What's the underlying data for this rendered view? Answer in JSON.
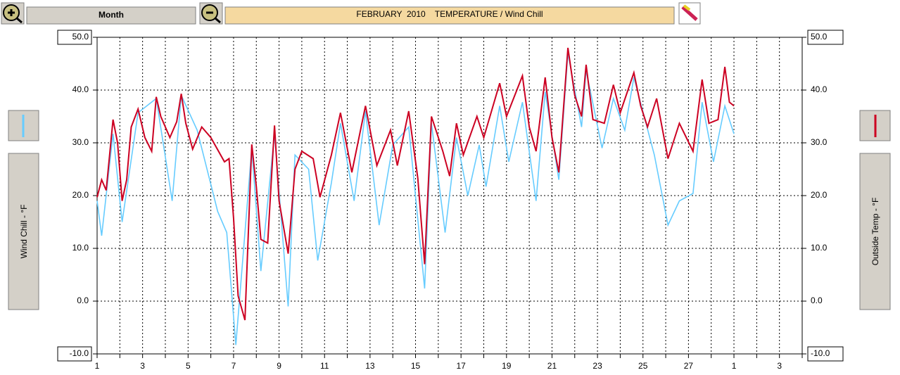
{
  "toolbar": {
    "range_button": "Month"
  },
  "chart_data": {
    "type": "line",
    "title": "FEBRUARY  2010    TEMPERATURE / Wind Chill",
    "ylabel": "Wind Chill - °F",
    "y2label": "Outside Temp - °F",
    "xlim": [
      1,
      32
    ],
    "xticks": [
      1,
      3,
      5,
      7,
      9,
      11,
      13,
      15,
      17,
      19,
      21,
      23,
      25,
      27,
      {
        "value": 29,
        "label": "1"
      },
      {
        "value": 31,
        "label": "3"
      }
    ],
    "x_minor_ticks": [
      2,
      4,
      6,
      8,
      10,
      12,
      14,
      16,
      18,
      20,
      22,
      24,
      26,
      28,
      30,
      32
    ],
    "ylim": [
      -10,
      50
    ],
    "yticks": [
      {
        "value": -10,
        "label": "-10.0"
      },
      {
        "value": 0,
        "label": "0.0"
      },
      {
        "value": 10,
        "label": "10.0"
      },
      {
        "value": 20,
        "label": "20.0"
      },
      {
        "value": 30,
        "label": "30.0"
      },
      {
        "value": 40,
        "label": "40.0"
      },
      {
        "value": 50,
        "label": "50.0"
      }
    ],
    "y2lim": [
      -10,
      50
    ],
    "y2ticks": [
      {
        "value": -10,
        "label": "-10.0"
      },
      {
        "value": 0,
        "label": "0.0"
      },
      {
        "value": 10,
        "label": "10.0"
      },
      {
        "value": 20,
        "label": "20.0"
      },
      {
        "value": 30,
        "label": "30.0"
      },
      {
        "value": 40,
        "label": "40.0"
      },
      {
        "value": 50,
        "label": "50.0"
      }
    ],
    "grid": true,
    "series": [
      {
        "name": "Wind Chill",
        "color": "#66ccff",
        "axis": "y",
        "x": [
          1,
          1.2,
          1.7,
          2.1,
          2.8,
          3.6,
          4.3,
          4.7,
          5.4,
          6.3,
          6.7,
          7.1,
          7.8,
          8.2,
          8.8,
          9.4,
          9.7,
          10.3,
          10.7,
          11.3,
          11.7,
          12.3,
          12.8,
          13.4,
          14.0,
          14.7,
          15.4,
          15.7,
          16.3,
          16.8,
          17.3,
          17.8,
          18.1,
          18.7,
          19.1,
          19.7,
          20.3,
          20.7,
          21.3,
          21.7,
          22.3,
          22.5,
          23.2,
          23.7,
          24.2,
          24.6,
          25.5,
          26.1,
          26.6,
          27.2,
          27.6,
          28.1,
          28.6,
          29
        ],
        "values": [
          19,
          12.4,
          31.7,
          15,
          35.7,
          38.4,
          19,
          39,
          32.4,
          17,
          13,
          -8.3,
          29,
          5.7,
          31.7,
          -1,
          27.7,
          25,
          7.7,
          22.4,
          33.7,
          19,
          36,
          14.4,
          29.6,
          33,
          2.4,
          33.7,
          13,
          31,
          20,
          29.6,
          21.7,
          37,
          26.4,
          37.7,
          19,
          39.7,
          23,
          47,
          33,
          43.7,
          29,
          38.4,
          32.4,
          42.4,
          27.7,
          14.4,
          19,
          20.4,
          37.7,
          26.4,
          37,
          31.7
        ]
      },
      {
        "name": "Outside Temp",
        "color": "#cc0022",
        "axis": "y2",
        "x": [
          1,
          1.2,
          1.4,
          1.7,
          1.9,
          2.1,
          2.3,
          2.5,
          2.8,
          3.1,
          3.4,
          3.6,
          3.8,
          4.2,
          4.5,
          4.7,
          4.9,
          5.2,
          5.6,
          6.0,
          6.6,
          6.8,
          7.0,
          7.2,
          7.5,
          7.8,
          8.0,
          8.2,
          8.5,
          8.8,
          9.0,
          9.4,
          9.7,
          10.0,
          10.5,
          10.8,
          11.3,
          11.7,
          12.2,
          12.8,
          13.3,
          13.9,
          14.2,
          14.7,
          15.1,
          15.4,
          15.7,
          16.2,
          16.5,
          16.8,
          17.1,
          17.7,
          18.0,
          18.7,
          19.0,
          19.7,
          20.0,
          20.3,
          20.7,
          21.0,
          21.3,
          21.7,
          22.0,
          22.3,
          22.5,
          22.8,
          23.3,
          23.7,
          24.0,
          24.6,
          24.9,
          25.2,
          25.6,
          26.1,
          26.6,
          27.2,
          27.6,
          27.9,
          28.3,
          28.6,
          28.8,
          29
        ],
        "values": [
          19.7,
          23,
          21,
          34.4,
          30,
          19,
          23,
          33,
          36.4,
          31,
          28.4,
          38.7,
          35,
          31,
          34,
          39.3,
          33.7,
          28.8,
          33,
          31,
          26.4,
          27,
          15.7,
          1,
          -3.6,
          29.7,
          21.7,
          11.7,
          11,
          33.3,
          19,
          9,
          25,
          28.4,
          27,
          19.7,
          27.7,
          35.7,
          24.4,
          37,
          25.7,
          32.4,
          25.7,
          36,
          23.3,
          7,
          35,
          28.4,
          23.7,
          33.7,
          27.7,
          35,
          31,
          41.3,
          35,
          42.7,
          33,
          28.4,
          42.4,
          31,
          24.4,
          48,
          39,
          35,
          44.8,
          34.4,
          33.7,
          41,
          35.7,
          43.3,
          37,
          33,
          38.4,
          27,
          33.7,
          28.4,
          42,
          33.7,
          34.4,
          44.4,
          37.7,
          37
        ]
      }
    ]
  }
}
